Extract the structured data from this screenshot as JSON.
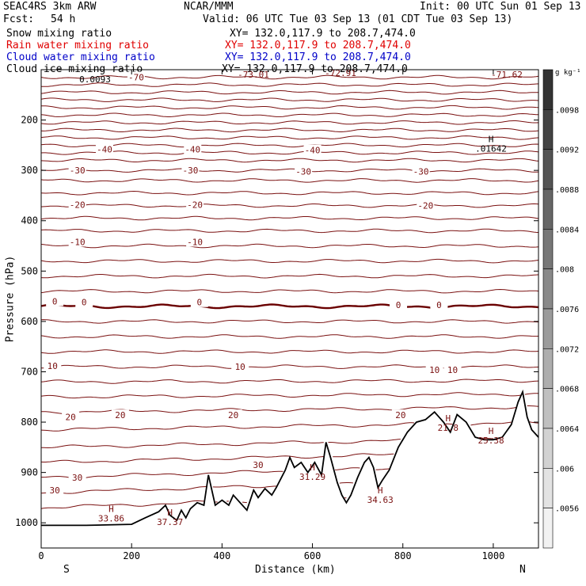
{
  "header": {
    "model": "SEAC4RS  3km ARW",
    "center": "NCAR/MMM",
    "init": "Init: 00 UTC Sun 01 Sep 13",
    "fcst_label": "Fcst:",
    "fcst_value": "54 h",
    "valid": "Valid: 06 UTC Tue 03 Sep 13 (01 CDT Tue 03 Sep 13)"
  },
  "fields": [
    {
      "name": "Snow mixing ratio",
      "xy": "XY= 132.0,117.9 to 208.7,474.0",
      "color": "#000000"
    },
    {
      "name": "Rain water mixing ratio",
      "xy": "XY= 132.0,117.9 to 208.7,474.0",
      "color": "#e00000"
    },
    {
      "name": "Cloud water mixing ratio",
      "xy": "XY= 132.0,117.9 to 208.7,474.0",
      "color": "#0000c8"
    },
    {
      "name": "Cloud ice mixing ratio",
      "xy": "XY= 132.0,117.9 to 208.7,474.0",
      "color": "#000000"
    }
  ],
  "colors": {
    "contour": "#7a1010",
    "terrain": "#000000",
    "zero_line": "#6a0000"
  },
  "chart_data": {
    "type": "line",
    "xlabel": "Distance (km)",
    "ylabel": "Pressure (hPa)",
    "xlim": [
      0,
      1100
    ],
    "ylim": [
      1050,
      100
    ],
    "x_ticks": [
      "0",
      "200",
      "400",
      "600",
      "800",
      "1000"
    ],
    "y_ticks": [
      "200",
      "300",
      "400",
      "500",
      "600",
      "700",
      "800",
      "900",
      "1000"
    ],
    "end_labels": {
      "left": "S",
      "right": "N"
    },
    "isotherm_pressures": [
      115,
      130,
      145,
      160,
      175,
      190,
      205,
      220,
      235,
      250,
      265,
      280,
      300,
      320,
      345,
      370,
      395,
      420,
      450,
      480,
      510,
      540,
      570,
      600,
      630,
      660,
      690,
      720,
      750,
      780,
      815,
      850,
      880,
      910,
      940,
      970
    ],
    "temperature_labels": [
      {
        "text": "-70",
        "x": 210,
        "p": 115
      },
      {
        "text": "-40",
        "x": 140,
        "p": 258
      },
      {
        "text": "-40",
        "x": 335,
        "p": 258
      },
      {
        "text": "-40",
        "x": 600,
        "p": 260
      },
      {
        "text": "-30",
        "x": 80,
        "p": 300
      },
      {
        "text": "-30",
        "x": 330,
        "p": 300
      },
      {
        "text": "-30",
        "x": 580,
        "p": 302
      },
      {
        "text": "-30",
        "x": 840,
        "p": 302
      },
      {
        "text": "-20",
        "x": 80,
        "p": 368
      },
      {
        "text": "-20",
        "x": 340,
        "p": 368
      },
      {
        "text": "-20",
        "x": 850,
        "p": 370
      },
      {
        "text": "-10",
        "x": 80,
        "p": 442
      },
      {
        "text": "-10",
        "x": 340,
        "p": 442
      },
      {
        "text": "0",
        "x": 30,
        "p": 560
      },
      {
        "text": "0",
        "x": 95,
        "p": 562
      },
      {
        "text": "0",
        "x": 350,
        "p": 562
      },
      {
        "text": "0",
        "x": 790,
        "p": 567
      },
      {
        "text": "0",
        "x": 880,
        "p": 567
      },
      {
        "text": "10",
        "x": 25,
        "p": 688
      },
      {
        "text": "10",
        "x": 440,
        "p": 690
      },
      {
        "text": "10",
        "x": 870,
        "p": 696
      },
      {
        "text": "10",
        "x": 910,
        "p": 696
      },
      {
        "text": "20",
        "x": 65,
        "p": 790
      },
      {
        "text": "20",
        "x": 175,
        "p": 786
      },
      {
        "text": "20",
        "x": 425,
        "p": 786
      },
      {
        "text": "20",
        "x": 795,
        "p": 786
      },
      {
        "text": "30",
        "x": 480,
        "p": 885
      },
      {
        "text": "30",
        "x": 80,
        "p": 910
      },
      {
        "text": "30",
        "x": 30,
        "p": 935
      }
    ],
    "top_labels": [
      "-73.01",
      "-72.91",
      "-71.62",
      "0.0093"
    ],
    "high_markers": [
      {
        "mark": "H",
        "value": "33.86",
        "x": 155,
        "p": 985
      },
      {
        "mark": "H",
        "value": "37.37",
        "x": 285,
        "p": 992
      },
      {
        "mark": "H",
        "value": "31.29",
        "x": 600,
        "p": 902
      },
      {
        "mark": "H",
        "value": "34.63",
        "x": 750,
        "p": 948
      },
      {
        "mark": "H",
        "value": "21.8",
        "x": 900,
        "p": 805
      },
      {
        "mark": "H",
        "value": "25.38",
        "x": 995,
        "p": 830
      },
      {
        "mark": "H",
        "value": ".01642",
        "x": 995,
        "p": 250
      }
    ],
    "terrain": {
      "x": [
        0,
        100,
        200,
        230,
        260,
        275,
        285,
        300,
        310,
        320,
        330,
        345,
        360,
        370,
        385,
        400,
        415,
        425,
        440,
        455,
        470,
        480,
        495,
        510,
        520,
        540,
        550,
        560,
        575,
        590,
        605,
        620,
        630,
        640,
        655,
        665,
        675,
        685,
        700,
        715,
        725,
        735,
        745,
        755,
        770,
        790,
        810,
        830,
        850,
        870,
        880,
        890,
        905,
        920,
        940,
        960,
        980,
        1000,
        1020,
        1040,
        1055,
        1065,
        1075,
        1085,
        1100
      ],
      "p": [
        1005,
        1005,
        1003,
        990,
        978,
        965,
        985,
        995,
        975,
        990,
        972,
        960,
        965,
        905,
        965,
        955,
        965,
        945,
        960,
        975,
        935,
        950,
        932,
        945,
        930,
        895,
        870,
        890,
        880,
        900,
        880,
        905,
        840,
        870,
        920,
        945,
        960,
        945,
        910,
        880,
        870,
        890,
        930,
        915,
        895,
        850,
        820,
        800,
        795,
        780,
        790,
        800,
        820,
        785,
        800,
        830,
        835,
        835,
        830,
        805,
        760,
        740,
        790,
        815,
        830
      ]
    },
    "colorbar": {
      "unit": "g kg⁻¹",
      "labels": [
        ".0098",
        ".0092",
        ".0088",
        ".0084",
        ".008",
        ".0076",
        ".0072",
        ".0068",
        ".0064",
        ".006",
        ".0056"
      ],
      "colors": [
        "#333333",
        "#434343",
        "#545454",
        "#666666",
        "#777777",
        "#898989",
        "#9b9b9b",
        "#aeaeae",
        "#c0c0c0",
        "#d2d2d2",
        "#e3e3e3",
        "#f2f2f2"
      ]
    }
  }
}
